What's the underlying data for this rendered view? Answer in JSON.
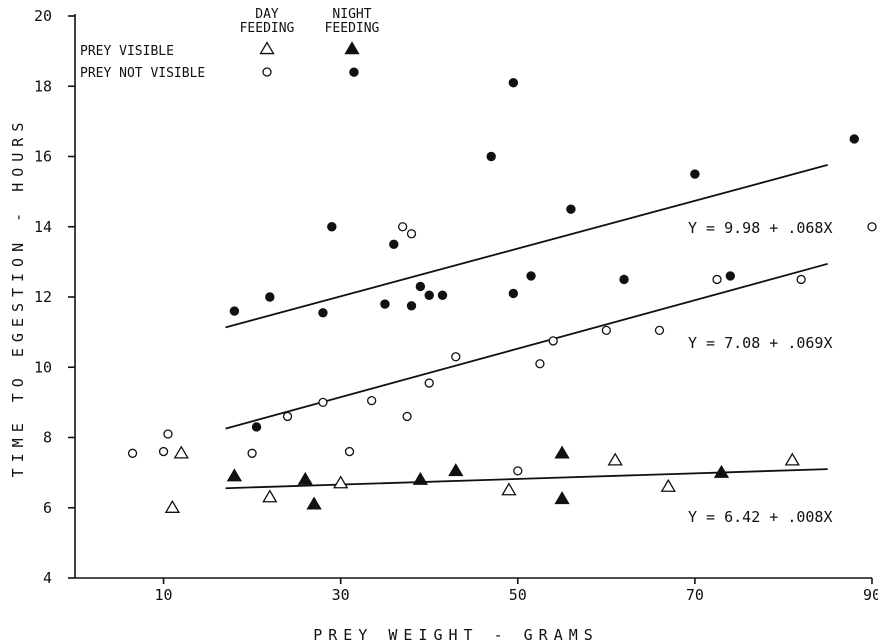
{
  "chart_data": {
    "type": "scatter",
    "xlabel": "PREY WEIGHT - GRAMS",
    "ylabel": "TIME TO EGESTION - HOURS",
    "xlim": [
      0,
      90
    ],
    "ylim": [
      4,
      20
    ],
    "xticks": [
      10,
      30,
      50,
      70,
      90
    ],
    "yticks": [
      4,
      6,
      8,
      10,
      12,
      14,
      16,
      18,
      20
    ],
    "legend": {
      "placement": "top-left",
      "column_headers": [
        "DAY FEEDING",
        "NIGHT FEEDING"
      ],
      "row_labels": [
        "PREY VISIBLE",
        "PREY NOT VISIBLE"
      ]
    },
    "series": [
      {
        "group": "prey-not-visible-night",
        "marker": "filled-circle",
        "points": [
          [
            18,
            11.6
          ],
          [
            20.5,
            8.3
          ],
          [
            22,
            12
          ],
          [
            28,
            11.55
          ],
          [
            29,
            14
          ],
          [
            31.5,
            18.4
          ],
          [
            35,
            11.8
          ],
          [
            36,
            13.5
          ],
          [
            38,
            11.75
          ],
          [
            39,
            12.3
          ],
          [
            40,
            12.05
          ],
          [
            41.5,
            12.05
          ],
          [
            47,
            16
          ],
          [
            49.5,
            12.1
          ],
          [
            49.5,
            18.1
          ],
          [
            51.5,
            12.6
          ],
          [
            56,
            14.5
          ],
          [
            62,
            12.5
          ],
          [
            70,
            15.5
          ],
          [
            74,
            12.6
          ],
          [
            88,
            16.5
          ]
        ]
      },
      {
        "group": "prey-not-visible-day",
        "marker": "open-circle",
        "points": [
          [
            6.5,
            7.55
          ],
          [
            10,
            7.6
          ],
          [
            10.5,
            8.1
          ],
          [
            20,
            7.55
          ],
          [
            24,
            8.6
          ],
          [
            28,
            9
          ],
          [
            31,
            7.6
          ],
          [
            33.5,
            9.05
          ],
          [
            37,
            14
          ],
          [
            37.5,
            8.6
          ],
          [
            38,
            13.8
          ],
          [
            40,
            9.55
          ],
          [
            43,
            10.3
          ],
          [
            50,
            7.05
          ],
          [
            52.5,
            10.1
          ],
          [
            54,
            10.75
          ],
          [
            60,
            11.05
          ],
          [
            66,
            11.05
          ],
          [
            72.5,
            12.5
          ],
          [
            82,
            12.5
          ],
          [
            90,
            14
          ]
        ]
      },
      {
        "group": "prey-visible-night",
        "marker": "filled-triangle",
        "points": [
          [
            18,
            6.9
          ],
          [
            26,
            6.8
          ],
          [
            27,
            6.1
          ],
          [
            39,
            6.8
          ],
          [
            43,
            7.05
          ],
          [
            55,
            7.55
          ],
          [
            55,
            6.25
          ],
          [
            73,
            7
          ]
        ]
      },
      {
        "group": "prey-visible-day",
        "marker": "open-triangle",
        "points": [
          [
            11,
            6
          ],
          [
            12,
            7.55
          ],
          [
            22,
            6.3
          ],
          [
            30,
            6.7
          ],
          [
            49,
            6.5
          ],
          [
            61,
            7.35
          ],
          [
            67,
            6.6
          ],
          [
            81,
            7.35
          ]
        ]
      }
    ],
    "regression_lines": [
      {
        "equation": "Y = 9.98 + .068X",
        "intercept": 9.98,
        "slope": 0.068,
        "x_range": [
          17,
          85
        ]
      },
      {
        "equation": "Y = 7.08 + .069X",
        "intercept": 7.08,
        "slope": 0.069,
        "x_range": [
          17,
          85
        ]
      },
      {
        "equation": "Y = 6.42 + .008X",
        "intercept": 6.42,
        "slope": 0.008,
        "x_range": [
          17,
          85
        ]
      }
    ]
  }
}
